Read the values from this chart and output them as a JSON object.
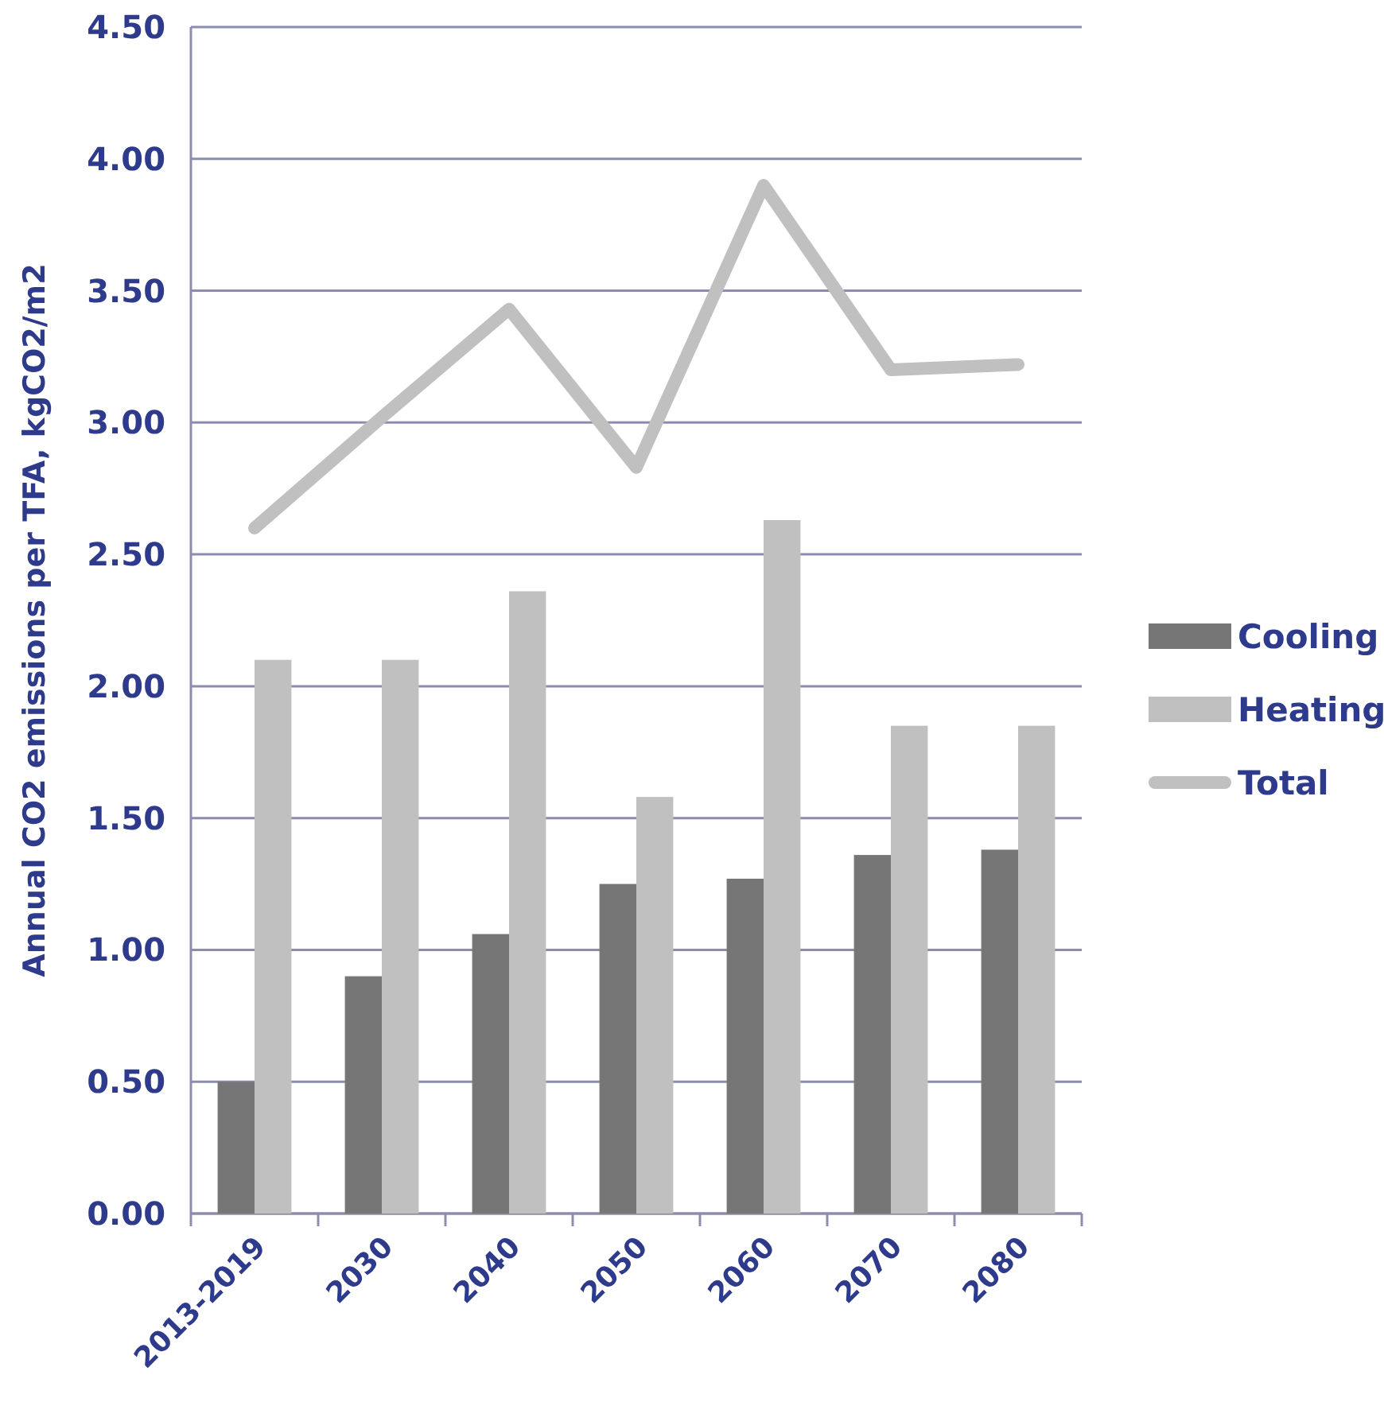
{
  "chart_data": {
    "type": "bar",
    "ylabel": "Annual CO2 emissions per TFA, kgCO2/m2",
    "categories": [
      "2013-2019",
      "2030",
      "2040",
      "2050",
      "2060",
      "2070",
      "2080"
    ],
    "series": [
      {
        "name": "Cooling",
        "color": "#767676",
        "values": [
          0.5,
          0.9,
          1.06,
          1.25,
          1.27,
          1.36,
          1.38
        ]
      },
      {
        "name": "Heating",
        "color": "#c0c0c0",
        "values": [
          2.1,
          2.1,
          2.36,
          1.58,
          2.63,
          1.85,
          1.85
        ]
      },
      {
        "name": "Total",
        "type": "line",
        "color": "#c0c0c0",
        "values": [
          2.6,
          3.02,
          3.43,
          2.83,
          3.9,
          3.2,
          3.22
        ]
      }
    ],
    "ylim": [
      0,
      4.5
    ],
    "yticks": [
      {
        "value": 0,
        "label": "0.00"
      },
      {
        "value": 0.5,
        "label": "0.50"
      },
      {
        "value": 1,
        "label": "1.00"
      },
      {
        "value": 1.5,
        "label": "1.50"
      },
      {
        "value": 2,
        "label": "2.00"
      },
      {
        "value": 2.5,
        "label": "2.50"
      },
      {
        "value": 3,
        "label": "3.00"
      },
      {
        "value": 3.5,
        "label": "3.50"
      },
      {
        "value": 4,
        "label": "4.00"
      },
      {
        "value": 4.5,
        "label": "4.50"
      }
    ],
    "grid": "y",
    "legend": "right",
    "marker": "none"
  }
}
